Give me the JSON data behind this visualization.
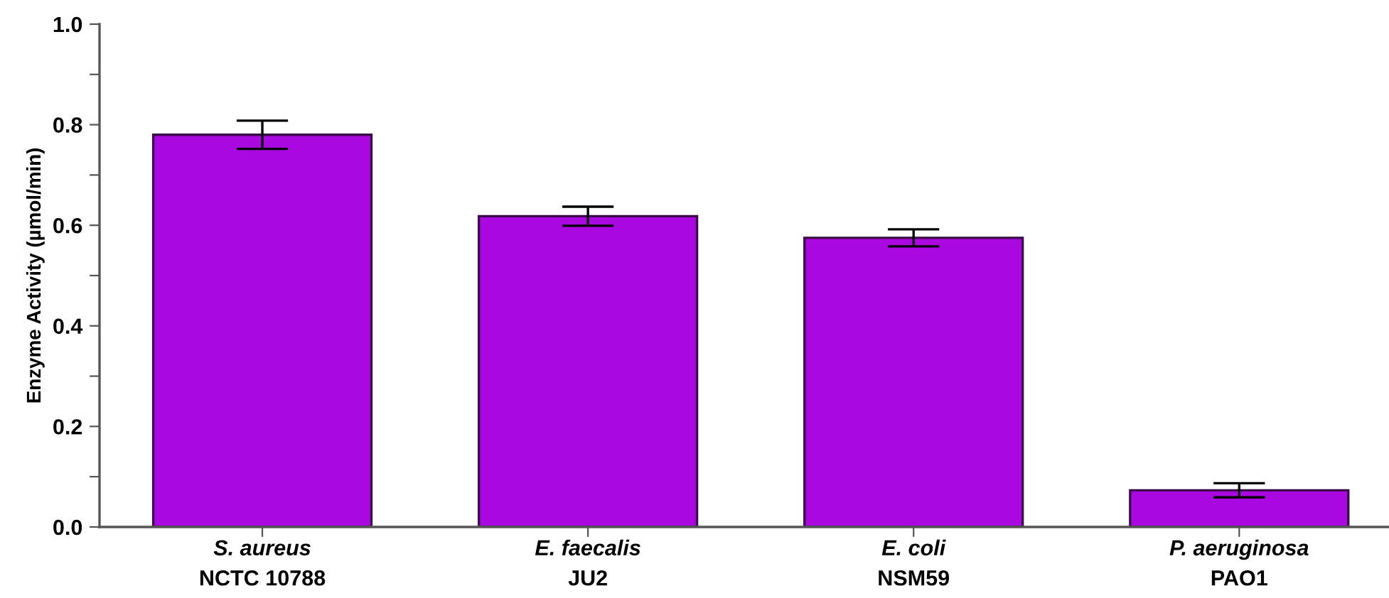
{
  "chart_data": {
    "type": "bar",
    "ylabel": "Enzyme Activity (µmol/min)",
    "categories": [
      "S. aureus\nNCTC 10788",
      "E. faecalis\nJU2",
      "E. coli\nNSM59",
      "P. aeruginosa\nPAO1"
    ],
    "values": [
      0.78,
      0.618,
      0.575,
      0.073
    ],
    "errors": [
      0.028,
      0.019,
      0.017,
      0.014
    ],
    "color": "#aa08e0",
    "ylim": [
      0,
      1.0
    ],
    "yticks": [
      {
        "value": 0,
        "label": "0.0"
      },
      {
        "value": 0.1,
        "label": null
      },
      {
        "value": 0.2,
        "label": "0.2"
      },
      {
        "value": 0.3,
        "label": null
      },
      {
        "value": 0.4,
        "label": "0.4"
      },
      {
        "value": 0.5,
        "label": null
      },
      {
        "value": 0.6,
        "label": "0.6"
      },
      {
        "value": 0.7,
        "label": null
      },
      {
        "value": 0.8,
        "label": "0.8"
      },
      {
        "value": 0.9,
        "label": null
      },
      {
        "value": 1.0,
        "label": "1.0"
      }
    ],
    "grid": false,
    "legend": false
  }
}
